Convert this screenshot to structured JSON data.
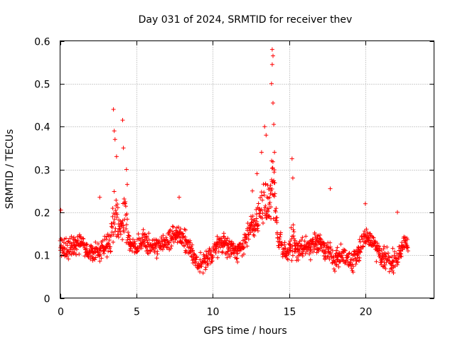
{
  "chart_data": {
    "type": "scatter",
    "title": "Day 031 of 2024, SRMTID for receiver thev",
    "xlabel": "GPS time / hours",
    "ylabel": "SRMTID / TECUs",
    "xlim": [
      0,
      24.5
    ],
    "ylim": [
      0,
      0.6
    ],
    "x_ticks": [
      0,
      5,
      10,
      15,
      20
    ],
    "x_tick_labels": [
      "0",
      "5",
      "10",
      "15",
      "20"
    ],
    "y_ticks": [
      0,
      0.1,
      0.2,
      0.3,
      0.4,
      0.5,
      0.6
    ],
    "y_tick_labels": [
      "0",
      "0.1",
      "0.2",
      "0.3",
      "0.4",
      "0.5",
      "0.6"
    ],
    "grid": true,
    "marker": "+",
    "color": "#ff0000",
    "series": [
      {
        "name": "thev",
        "x_start": 0.0,
        "x_end": 22.8,
        "point_spacing_hours": 0.025,
        "baseline_profile": {
          "x": [
            0,
            0.5,
            1.0,
            1.5,
            2.0,
            2.5,
            3.0,
            3.5,
            4.0,
            4.5,
            5.0,
            5.5,
            6.0,
            6.5,
            7.0,
            7.5,
            8.0,
            8.5,
            9.0,
            9.5,
            10.0,
            10.5,
            11.0,
            11.5,
            12.0,
            12.5,
            13.0,
            13.5,
            14.0,
            14.5,
            15.0,
            15.5,
            16.0,
            16.5,
            17.0,
            17.5,
            18.0,
            18.5,
            19.0,
            19.5,
            20.0,
            20.5,
            21.0,
            21.5,
            22.0,
            22.5,
            22.8
          ],
          "y": [
            0.12,
            0.11,
            0.13,
            0.12,
            0.1,
            0.11,
            0.12,
            0.13,
            0.14,
            0.13,
            0.12,
            0.13,
            0.12,
            0.12,
            0.13,
            0.15,
            0.14,
            0.12,
            0.08,
            0.08,
            0.11,
            0.13,
            0.12,
            0.11,
            0.12,
            0.17,
            0.15,
            0.16,
            0.18,
            0.12,
            0.1,
            0.11,
            0.12,
            0.12,
            0.13,
            0.11,
            0.09,
            0.1,
            0.08,
            0.1,
            0.15,
            0.13,
            0.1,
            0.09,
            0.08,
            0.13,
            0.12
          ]
        },
        "spread": 0.035,
        "peaks": [
          {
            "x": 3.5,
            "y": 0.44
          },
          {
            "x": 3.55,
            "y": 0.39
          },
          {
            "x": 3.6,
            "y": 0.37
          },
          {
            "x": 3.7,
            "y": 0.33
          },
          {
            "x": 4.1,
            "y": 0.415
          },
          {
            "x": 4.15,
            "y": 0.35
          },
          {
            "x": 4.35,
            "y": 0.3
          },
          {
            "x": 4.4,
            "y": 0.265
          },
          {
            "x": 12.6,
            "y": 0.25
          },
          {
            "x": 12.9,
            "y": 0.29
          },
          {
            "x": 13.2,
            "y": 0.34
          },
          {
            "x": 13.4,
            "y": 0.4
          },
          {
            "x": 13.5,
            "y": 0.38
          },
          {
            "x": 13.9,
            "y": 0.58
          },
          {
            "x": 13.95,
            "y": 0.565
          },
          {
            "x": 13.9,
            "y": 0.545
          },
          {
            "x": 13.85,
            "y": 0.5
          },
          {
            "x": 13.95,
            "y": 0.455
          },
          {
            "x": 14.0,
            "y": 0.405
          },
          {
            "x": 14.05,
            "y": 0.34
          },
          {
            "x": 15.2,
            "y": 0.325
          },
          {
            "x": 15.25,
            "y": 0.28
          },
          {
            "x": 17.7,
            "y": 0.255
          },
          {
            "x": 20.0,
            "y": 0.22
          },
          {
            "x": 22.1,
            "y": 0.2
          },
          {
            "x": 7.8,
            "y": 0.235
          },
          {
            "x": 2.6,
            "y": 0.235
          },
          {
            "x": 0.05,
            "y": 0.205
          }
        ],
        "peak_envelopes": [
          {
            "center": 3.65,
            "width": 0.35,
            "amplitude": 0.12
          },
          {
            "center": 4.2,
            "width": 0.3,
            "amplitude": 0.1
          },
          {
            "center": 13.5,
            "width": 0.8,
            "amplitude": 0.12
          },
          {
            "center": 13.9,
            "width": 0.3,
            "amplitude": 0.18
          },
          {
            "center": 15.2,
            "width": 0.25,
            "amplitude": 0.08
          }
        ]
      }
    ]
  }
}
